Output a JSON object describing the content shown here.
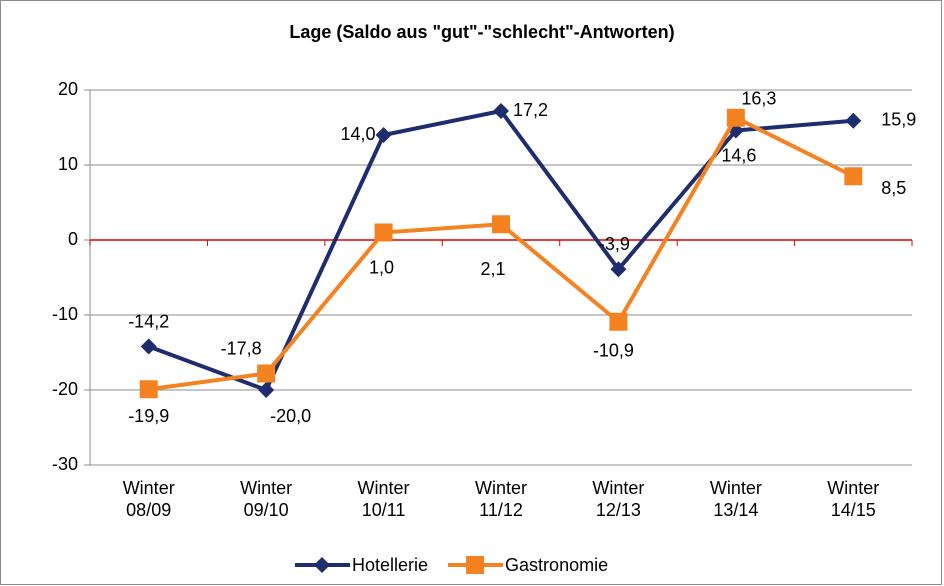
{
  "chart_data": {
    "type": "line",
    "title": "Lage (Saldo aus \"gut\"-\"schlecht\"-Antworten)",
    "categories": [
      "Winter 08/09",
      "Winter 09/10",
      "Winter 10/11",
      "Winter 11/12",
      "Winter 12/13",
      "Winter 13/14",
      "Winter 14/15"
    ],
    "series": [
      {
        "name": "Hotellerie",
        "color": "#1f2d6e",
        "marker": "diamond",
        "values": [
          -14.2,
          -20.0,
          14.0,
          17.2,
          -3.9,
          14.6,
          15.9
        ],
        "value_labels": [
          "-14,2",
          "-20,0",
          "14,0",
          "17,2",
          "-3,9",
          "14,6",
          "15,9"
        ]
      },
      {
        "name": "Gastronomie",
        "color": "#f58220",
        "marker": "square",
        "values": [
          -19.9,
          -17.8,
          1.0,
          2.1,
          -10.9,
          16.3,
          8.5
        ],
        "value_labels": [
          "-19,9",
          "-17,8",
          "1,0",
          "2,1",
          "-10,9",
          "16,3",
          "8,5"
        ]
      }
    ],
    "ylim": [
      -30,
      20
    ],
    "yticks": [
      -30,
      -20,
      -10,
      0,
      10,
      20
    ],
    "grid": true,
    "legend": "bottom"
  }
}
